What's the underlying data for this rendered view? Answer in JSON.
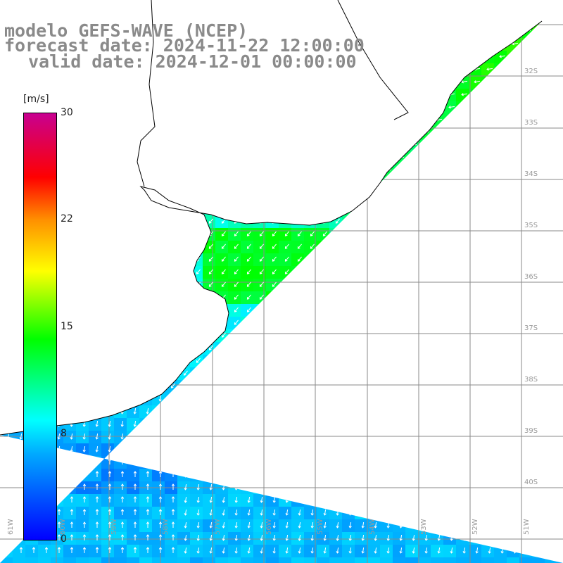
{
  "title": {
    "line1": "modelo GEFS-WAVE (NCEP)",
    "line2": "forecast date: 2024-11-22 12:00:00",
    "line3": "valid date: 2024-12-01 00:00:00"
  },
  "colorbar": {
    "unit": "[m/s]",
    "ticks": [
      "30",
      "22",
      "15",
      "8",
      "0"
    ],
    "tick_values": [
      30,
      22,
      15,
      8,
      0
    ]
  },
  "grid": {
    "lat_labels": [
      "32S",
      "33S",
      "34S",
      "35S",
      "36S",
      "37S",
      "38S",
      "39S",
      "40S"
    ],
    "lon_labels": [
      "61W",
      "60W",
      "59W",
      "58W",
      "57W",
      "56W",
      "55W",
      "54W",
      "53W",
      "52W",
      "51W"
    ]
  },
  "colors": {
    "land": "#ffffff",
    "coast": "#000000",
    "grid": "#8a8a8a",
    "arrow": "#ffffff"
  }
}
